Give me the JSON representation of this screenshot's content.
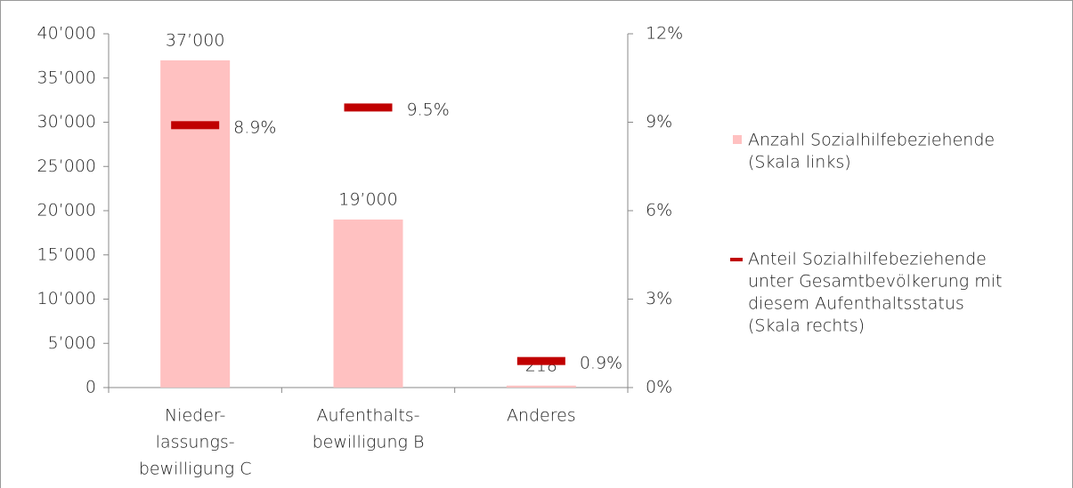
{
  "chart_data": {
    "type": "bar",
    "categories": [
      [
        "Nieder-",
        "lassungs-",
        "bewilligung C"
      ],
      [
        "Aufenthalts-",
        "bewilligung B"
      ],
      [
        "Anderes"
      ]
    ],
    "series": [
      {
        "name": [
          "Anzahl Sozialhilfebeziehende",
          "(Skala links)"
        ],
        "color": "#ffc1c1",
        "values": [
          37000,
          19000,
          218
        ],
        "value_labels": [
          "37’000",
          "19’000",
          "218"
        ]
      },
      {
        "name": [
          "Anteil Sozialhilfebeziehende",
          "unter Gesamtbevölkerung mit",
          "diesem Aufenthaltsstatus",
          "(Skala rechts)"
        ],
        "color": "#c00000",
        "axis": "y2",
        "values": [
          8.9,
          9.5,
          0.9
        ],
        "value_labels": [
          "8.9%",
          "9.5%",
          "0.9%"
        ]
      }
    ],
    "ylim": [
      0,
      40000
    ],
    "yticks": [
      0,
      {
        "value": 5000,
        "label": "5’000"
      },
      {
        "value": 10000,
        "label": "10’000"
      },
      {
        "value": 15000,
        "label": "15’000"
      },
      {
        "value": 20000,
        "label": "20’000"
      },
      {
        "value": 25000,
        "label": "25’000"
      },
      {
        "value": 30000,
        "label": "30’000"
      },
      {
        "value": 35000,
        "label": "35’000"
      },
      {
        "value": 40000,
        "label": "40’000"
      }
    ],
    "y2lim": [
      0,
      12
    ],
    "y2ticks": [
      {
        "value": 0,
        "label": "0%"
      },
      {
        "value": 3,
        "label": "3%"
      },
      {
        "value": 6,
        "label": "6%"
      },
      {
        "value": 9,
        "label": "9%"
      },
      {
        "value": 12,
        "label": "12%"
      }
    ],
    "grid": false,
    "legend": "right"
  }
}
